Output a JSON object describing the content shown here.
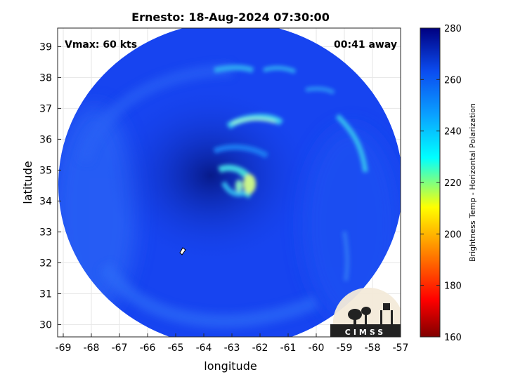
{
  "title": "Ernesto: 18-Aug-2024 07:30:00",
  "vmax_text": "Vmax: 60 kts",
  "time_text": "00:41 away",
  "logo_text": "CIMSS",
  "xaxis": {
    "label": "longitude",
    "range": [
      -69.2,
      -57
    ],
    "ticks": [
      -69,
      -68,
      -67,
      -66,
      -65,
      -64,
      -63,
      -62,
      -61,
      -60,
      -59,
      -58,
      -57
    ]
  },
  "yaxis": {
    "label": "latitude",
    "range": [
      29.6,
      39.6
    ],
    "ticks": [
      30,
      31,
      32,
      33,
      34,
      35,
      36,
      37,
      38,
      39
    ]
  },
  "colorbar": {
    "label": "Brightness Temp - Horizontal Polarization",
    "range": [
      160,
      280
    ],
    "ticks": [
      160,
      180,
      200,
      220,
      240,
      260,
      280
    ],
    "colormap": "parula-jet"
  },
  "chart_data": {
    "type": "heatmap",
    "title": "Ernesto: 18-Aug-2024 07:30:00",
    "xlabel": "longitude",
    "ylabel": "latitude",
    "xlim": [
      -69.2,
      -57
    ],
    "ylim": [
      29.6,
      39.6
    ],
    "grid": true,
    "swath_center": [
      -63.0,
      34.6
    ],
    "storm_center": [
      -62.8,
      34.5
    ],
    "storm_center_bt_min": 222,
    "background_bt": 262
  },
  "colors": {
    "eye": "#0c1fa0",
    "swath": "#1744f0",
    "band": "#4bd7e8"
  }
}
